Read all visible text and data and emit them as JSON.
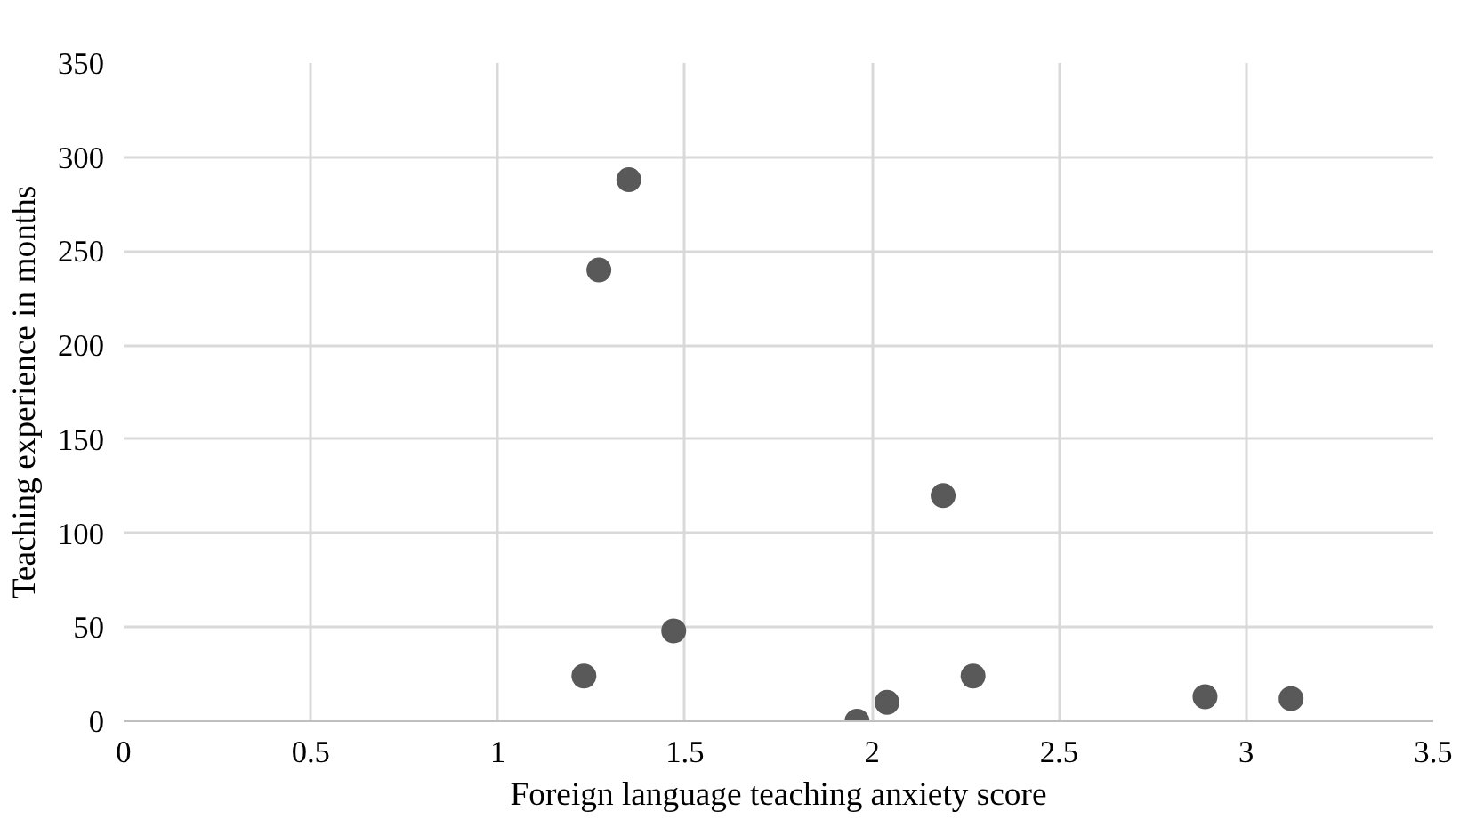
{
  "chart_data": {
    "type": "scatter",
    "xlabel": "Foreign language teaching anxiety score",
    "ylabel": "Teaching experience in months",
    "x": [
      1.23,
      1.27,
      1.35,
      1.47,
      1.96,
      2.04,
      2.19,
      2.27,
      2.89,
      3.12
    ],
    "values": [
      24,
      240,
      288,
      48,
      0,
      10,
      120,
      24,
      13,
      12
    ],
    "color": "#595959",
    "marker": "circle",
    "grid": true,
    "xlim": [
      0,
      3.5
    ],
    "xticks": [
      0,
      0.5,
      1,
      1.5,
      2,
      2.5,
      3,
      3.5
    ],
    "ylim": [
      0,
      350
    ],
    "yticks": [
      0,
      50,
      100,
      150,
      200,
      250,
      300,
      350
    ]
  }
}
